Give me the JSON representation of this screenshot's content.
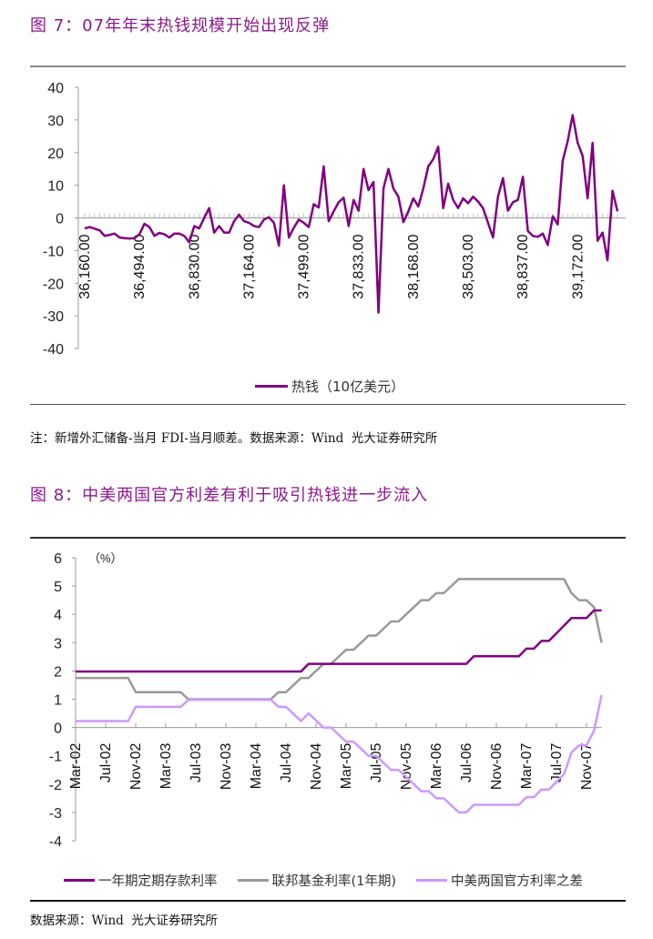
{
  "figure7": {
    "title": "图 7：07年年末热钱规模开始出现反弹",
    "note": "注：新增外汇储备-当月 FDI-当月顺差。数据来源：Wind  光大证券研究所",
    "legend_label": "热钱（10亿美元）",
    "line_color": "#800080"
  },
  "figure8": {
    "title": "图 8：中美两国官方利差有利于吸引热钱进一步流入",
    "unit_label": "（%）",
    "source": "数据来源：Wind  光大证券研究所"
  },
  "chart_data": [
    {
      "type": "line",
      "title": "",
      "ylim": [
        -40,
        40
      ],
      "yticks": [
        "40",
        "30",
        "20",
        "10",
        "0",
        "-10",
        "-20",
        "-30",
        "-40"
      ],
      "xtick_labels": [
        "36,160.00",
        "36,494.00",
        "36,830.00",
        "37,164.00",
        "37,499.00",
        "37,833.00",
        "38,168.00",
        "38,503.00",
        "38,837.00",
        "39,172.00"
      ],
      "grid": false,
      "legend": "bottom",
      "series": [
        {
          "name": "热钱（10亿美元）",
          "color": "#800080",
          "values": [
            -3.2,
            -2.8,
            -3.3,
            -3.8,
            -5.5,
            -5.2,
            -4.8,
            -6.0,
            -6.2,
            -6.3,
            -6.2,
            -5.0,
            -1.8,
            -2.8,
            -5.5,
            -4.6,
            -5.0,
            -6.0,
            -4.8,
            -4.8,
            -5.5,
            -7.5,
            -2.5,
            -3.2,
            0,
            3,
            -4.5,
            -2.5,
            -4.5,
            -4.5,
            -1,
            1,
            -1,
            -1.5,
            -2.5,
            -2.8,
            -0.5,
            0.2,
            -1.5,
            -8.5,
            10,
            -6,
            -3,
            -0.5,
            -1.5,
            -2.8,
            4.2,
            3.2,
            15.8,
            -1,
            2,
            4.8,
            6.2,
            -2.5,
            5.5,
            2.2,
            15,
            8.5,
            11,
            -29,
            9,
            15,
            9,
            6.5,
            -1.3,
            2,
            6,
            3.5,
            9,
            15.8,
            18,
            21.8,
            3,
            10.5,
            5.5,
            3,
            6,
            4.5,
            6.5,
            5,
            3,
            -1.5,
            -6,
            6.5,
            12.2,
            2.2,
            4.8,
            5.5,
            12.6,
            -4,
            -5.5,
            -5.8,
            -4.8,
            -8.3,
            0.5,
            -2,
            17.5,
            23.5,
            31.5,
            23,
            19,
            6,
            23,
            -7,
            -4.5,
            -13,
            8.3,
            2
          ]
        }
      ]
    },
    {
      "type": "line",
      "title": "",
      "ylabel": "（%）",
      "ylim": [
        -4,
        6
      ],
      "yticks": [
        "6",
        "5",
        "4",
        "3",
        "2",
        "1",
        "0",
        "-1",
        "-2",
        "-3",
        "-4"
      ],
      "categories": [
        "Mar-02",
        "Apr-02",
        "May-02",
        "Jun-02",
        "Jul-02",
        "Aug-02",
        "Sep-02",
        "Oct-02",
        "Nov-02",
        "Dec-02",
        "Jan-03",
        "Feb-03",
        "Mar-03",
        "Apr-03",
        "May-03",
        "Jun-03",
        "Jul-03",
        "Aug-03",
        "Sep-03",
        "Oct-03",
        "Nov-03",
        "Dec-03",
        "Jan-04",
        "Feb-04",
        "Mar-04",
        "Apr-04",
        "May-04",
        "Jun-04",
        "Jul-04",
        "Aug-04",
        "Sep-04",
        "Oct-04",
        "Nov-04",
        "Dec-04",
        "Jan-05",
        "Feb-05",
        "Mar-05",
        "Apr-05",
        "May-05",
        "Jun-05",
        "Jul-05",
        "Aug-05",
        "Sep-05",
        "Oct-05",
        "Nov-05",
        "Dec-05",
        "Jan-06",
        "Feb-06",
        "Mar-06",
        "Apr-06",
        "May-06",
        "Jun-06",
        "Jul-06",
        "Aug-06",
        "Sep-06",
        "Oct-06",
        "Nov-06",
        "Dec-06",
        "Jan-07",
        "Feb-07",
        "Mar-07",
        "Apr-07",
        "May-07",
        "Jun-07",
        "Jul-07",
        "Aug-07",
        "Sep-07",
        "Oct-07",
        "Nov-07",
        "Dec-07",
        "Jan-08"
      ],
      "xtick_labels": [
        "Mar-02",
        "Jul-02",
        "Nov-02",
        "Mar-03",
        "Jul-03",
        "Nov-03",
        "Mar-04",
        "Jul-04",
        "Nov-04",
        "Mar-05",
        "Jul-05",
        "Nov-05",
        "Mar-06",
        "Jul-06",
        "Nov-06",
        "Mar-07",
        "Jul-07",
        "Nov-07"
      ],
      "grid": false,
      "legend": "bottom",
      "series": [
        {
          "name": "一年期定期存款利率",
          "color": "#800080",
          "values": [
            1.98,
            1.98,
            1.98,
            1.98,
            1.98,
            1.98,
            1.98,
            1.98,
            1.98,
            1.98,
            1.98,
            1.98,
            1.98,
            1.98,
            1.98,
            1.98,
            1.98,
            1.98,
            1.98,
            1.98,
            1.98,
            1.98,
            1.98,
            1.98,
            1.98,
            1.98,
            1.98,
            1.98,
            1.98,
            1.98,
            1.98,
            2.25,
            2.25,
            2.25,
            2.25,
            2.25,
            2.25,
            2.25,
            2.25,
            2.25,
            2.25,
            2.25,
            2.25,
            2.25,
            2.25,
            2.25,
            2.25,
            2.25,
            2.25,
            2.25,
            2.25,
            2.25,
            2.25,
            2.52,
            2.52,
            2.52,
            2.52,
            2.52,
            2.52,
            2.52,
            2.79,
            2.79,
            3.06,
            3.06,
            3.33,
            3.6,
            3.87,
            3.87,
            3.87,
            4.14,
            4.14
          ]
        },
        {
          "name": "联邦基金利率(1年期)",
          "color": "#999999",
          "values": [
            1.75,
            1.75,
            1.75,
            1.75,
            1.75,
            1.75,
            1.75,
            1.75,
            1.25,
            1.25,
            1.25,
            1.25,
            1.25,
            1.25,
            1.25,
            1.0,
            1.0,
            1.0,
            1.0,
            1.0,
            1.0,
            1.0,
            1.0,
            1.0,
            1.0,
            1.0,
            1.0,
            1.25,
            1.25,
            1.5,
            1.75,
            1.75,
            2.0,
            2.25,
            2.25,
            2.5,
            2.75,
            2.75,
            3.0,
            3.25,
            3.25,
            3.5,
            3.75,
            3.75,
            4.0,
            4.25,
            4.5,
            4.5,
            4.75,
            4.75,
            5.0,
            5.25,
            5.25,
            5.25,
            5.25,
            5.25,
            5.25,
            5.25,
            5.25,
            5.25,
            5.25,
            5.25,
            5.25,
            5.25,
            5.25,
            5.25,
            4.75,
            4.5,
            4.5,
            4.25,
            3.0
          ]
        },
        {
          "name": "中美两国官方利率之差",
          "color": "#cc99ff",
          "values": [
            0.23,
            0.23,
            0.23,
            0.23,
            0.23,
            0.23,
            0.23,
            0.23,
            0.73,
            0.73,
            0.73,
            0.73,
            0.73,
            0.73,
            0.73,
            0.98,
            0.98,
            0.98,
            0.98,
            0.98,
            0.98,
            0.98,
            0.98,
            0.98,
            0.98,
            0.98,
            0.98,
            0.73,
            0.73,
            0.48,
            0.23,
            0.5,
            0.25,
            0,
            0,
            -0.25,
            -0.5,
            -0.5,
            -0.75,
            -1,
            -1,
            -1.25,
            -1.5,
            -1.5,
            -1.75,
            -2,
            -2.25,
            -2.25,
            -2.5,
            -2.5,
            -2.75,
            -3,
            -3,
            -2.73,
            -2.73,
            -2.73,
            -2.73,
            -2.73,
            -2.73,
            -2.73,
            -2.46,
            -2.46,
            -2.19,
            -2.19,
            -1.92,
            -1.65,
            -0.88,
            -0.63,
            -0.63,
            -0.11,
            1.14
          ]
        }
      ]
    }
  ]
}
